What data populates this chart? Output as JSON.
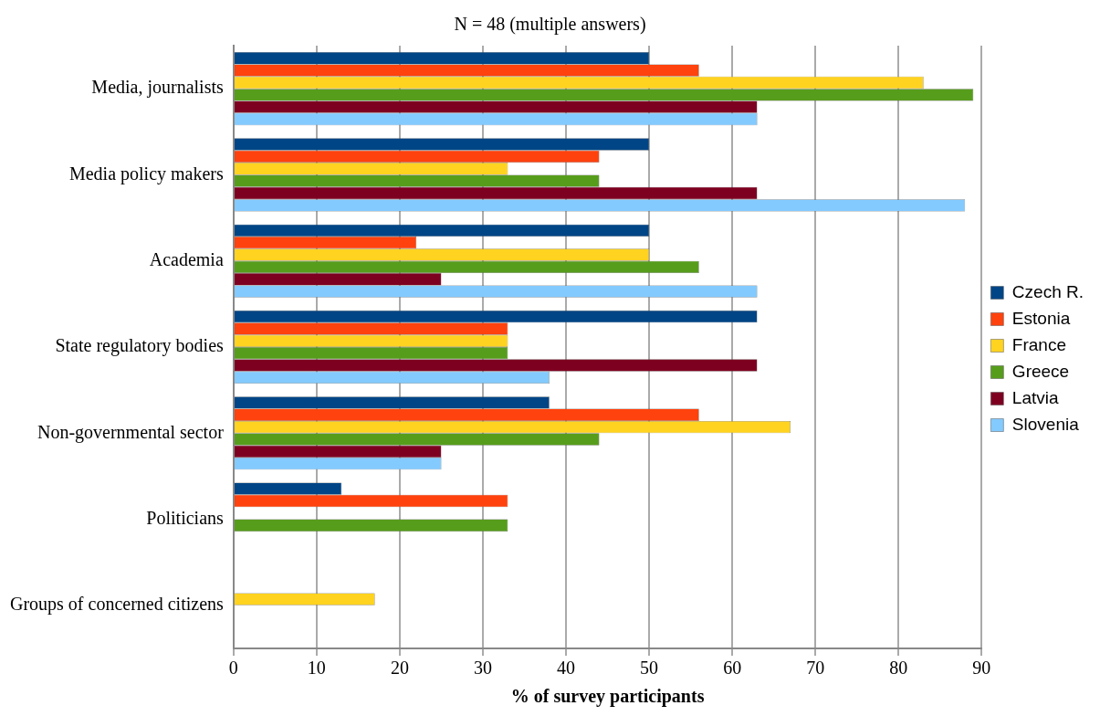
{
  "chart_data": {
    "type": "bar",
    "orientation": "horizontal",
    "title": "N = 48 (multiple answers)",
    "xlabel": "% of survey participants",
    "categories": [
      "Media, journalists",
      "Media policy makers",
      "Academia",
      "State regulatory bodies",
      "Non-governmental sector",
      "Politicians",
      "Groups of concerned citizens"
    ],
    "series": [
      {
        "name": "Czech R.",
        "color": "#004586",
        "values": [
          50,
          50,
          50,
          63,
          38,
          13,
          null
        ]
      },
      {
        "name": "Estonia",
        "color": "#ff420e",
        "values": [
          56,
          44,
          22,
          33,
          56,
          33,
          null
        ]
      },
      {
        "name": "France",
        "color": "#ffd320",
        "values": [
          83,
          33,
          50,
          33,
          67,
          null,
          17
        ]
      },
      {
        "name": "Greece",
        "color": "#579d1c",
        "values": [
          89,
          44,
          56,
          33,
          44,
          33,
          null
        ]
      },
      {
        "name": "Latvia",
        "color": "#7e0021",
        "values": [
          63,
          63,
          25,
          63,
          25,
          null,
          null
        ]
      },
      {
        "name": "Slovenia",
        "color": "#83caff",
        "values": [
          63,
          88,
          63,
          38,
          25,
          null,
          null
        ]
      }
    ],
    "xlim": [
      0,
      90
    ],
    "xticks": [
      0,
      10,
      20,
      30,
      40,
      50,
      60,
      70,
      80,
      90
    ],
    "grid": "x",
    "legend": "right"
  }
}
